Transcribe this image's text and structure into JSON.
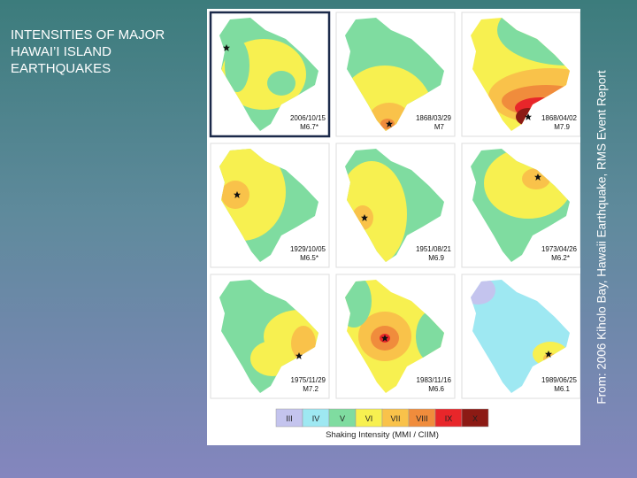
{
  "title": {
    "lines": [
      "INTENSITIES OF MAJOR",
      "HAWAI’I ISLAND",
      "EARTHQUAKES"
    ]
  },
  "source": "From: 2006 Kiholo Bay, Hawaii Earthquake, RMS Event Report",
  "panels": [
    {
      "date": "2006/10/15",
      "magnitude": "M6.7*"
    },
    {
      "date": "1868/03/29",
      "magnitude": "M7"
    },
    {
      "date": "1868/04/02",
      "magnitude": "M7.9"
    },
    {
      "date": "1929/10/05",
      "magnitude": "M6.5*"
    },
    {
      "date": "1951/08/21",
      "magnitude": "M6.9"
    },
    {
      "date": "1973/04/26",
      "magnitude": "M6.2*"
    },
    {
      "date": "1975/11/29",
      "magnitude": "M7.2"
    },
    {
      "date": "1983/11/16",
      "magnitude": "M6.6"
    },
    {
      "date": "1989/06/25",
      "magnitude": "M6.1"
    }
  ],
  "legend": {
    "labels": [
      "III",
      "IV",
      "V",
      "VI",
      "VII",
      "VIII",
      "IX",
      "X"
    ],
    "caption": "Shaking Intensity (MMI / CIIM)"
  }
}
